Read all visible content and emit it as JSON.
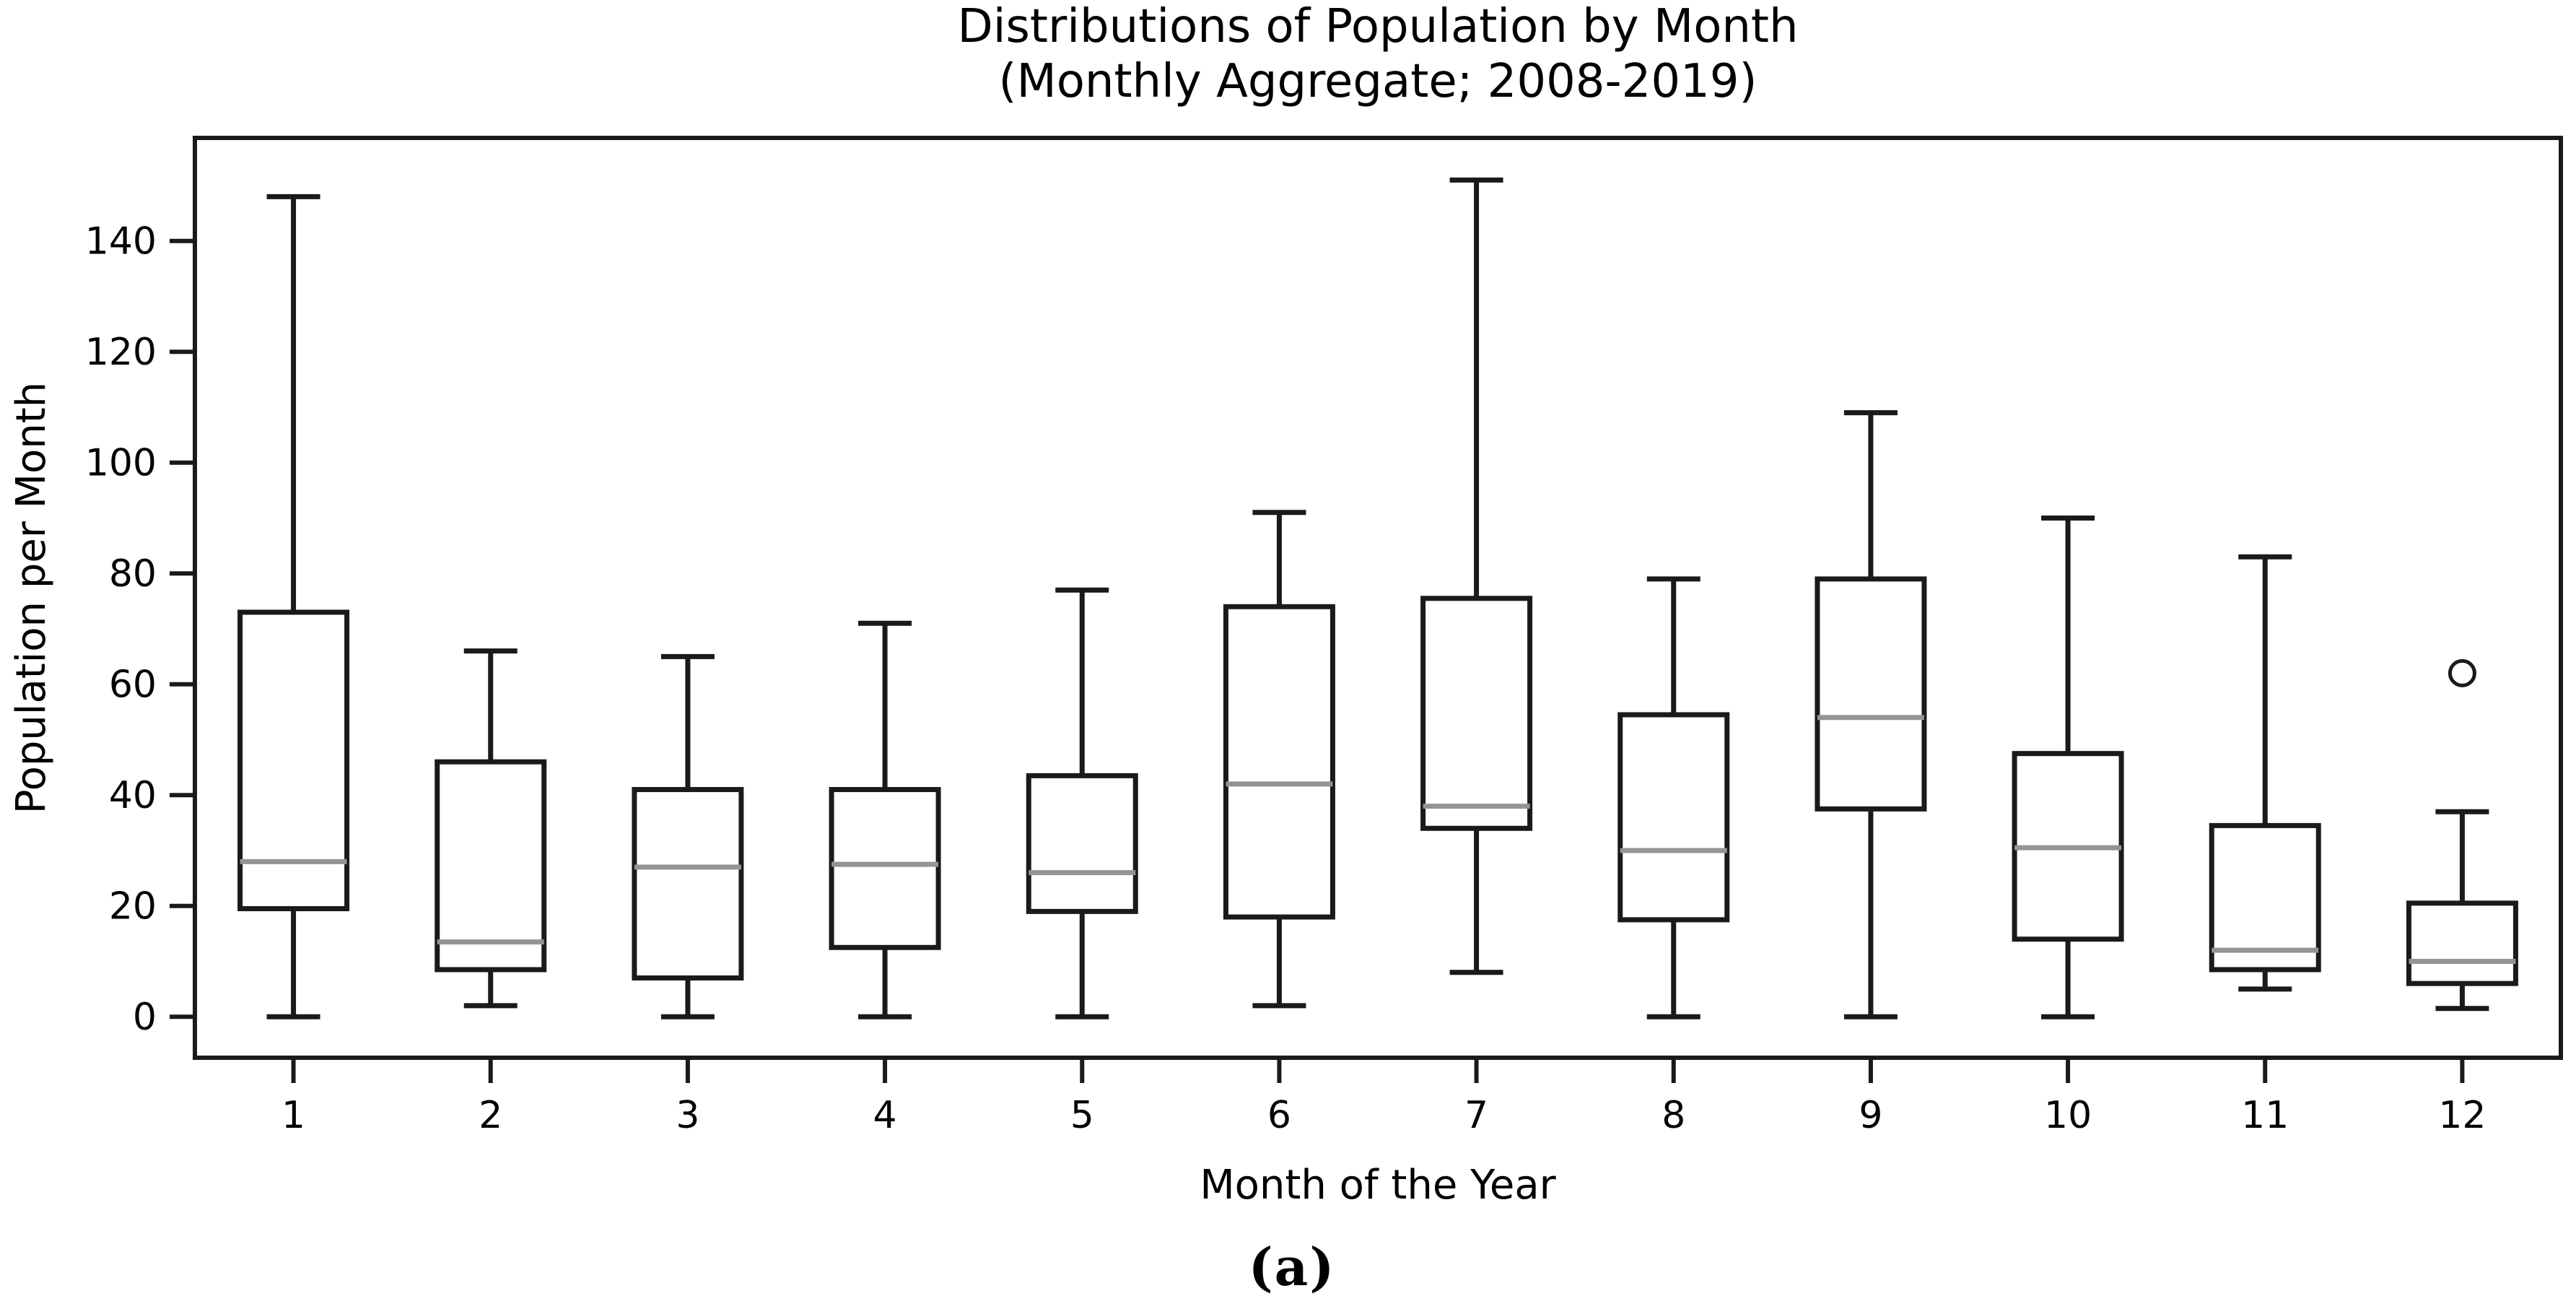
{
  "figure": {
    "caption": "(a)"
  },
  "chart_data": {
    "type": "box",
    "title": "Distributions of Population by Month",
    "subtitle": "(Monthly Aggregate; 2008-2019)",
    "xlabel": "Month of the Year",
    "ylabel": "Population per Month",
    "categories": [
      "1",
      "2",
      "3",
      "4",
      "5",
      "6",
      "7",
      "8",
      "9",
      "10",
      "11",
      "12"
    ],
    "yticks": [
      0,
      20,
      40,
      60,
      80,
      100,
      120,
      140
    ],
    "ylim": [
      -7.4,
      158.6
    ],
    "grid": false,
    "legend": null,
    "boxes": [
      {
        "month": "1",
        "whislo": 0,
        "q1": 19.5,
        "med": 28,
        "q3": 73,
        "whishi": 148,
        "outliers": []
      },
      {
        "month": "2",
        "whislo": 2,
        "q1": 8.5,
        "med": 13.5,
        "q3": 46,
        "whishi": 66,
        "outliers": []
      },
      {
        "month": "3",
        "whislo": 0,
        "q1": 7,
        "med": 27,
        "q3": 41,
        "whishi": 65,
        "outliers": []
      },
      {
        "month": "4",
        "whislo": 0,
        "q1": 12.5,
        "med": 27.5,
        "q3": 41,
        "whishi": 71,
        "outliers": []
      },
      {
        "month": "5",
        "whislo": 0,
        "q1": 19,
        "med": 26,
        "q3": 43.5,
        "whishi": 77,
        "outliers": []
      },
      {
        "month": "6",
        "whislo": 2,
        "q1": 18,
        "med": 42,
        "q3": 74,
        "whishi": 91,
        "outliers": []
      },
      {
        "month": "7",
        "whislo": 8,
        "q1": 34,
        "med": 38,
        "q3": 75.5,
        "whishi": 151,
        "outliers": []
      },
      {
        "month": "8",
        "whislo": 0,
        "q1": 17.5,
        "med": 30,
        "q3": 54.5,
        "whishi": 79,
        "outliers": []
      },
      {
        "month": "9",
        "whislo": 0,
        "q1": 37.5,
        "med": 54,
        "q3": 79,
        "whishi": 109,
        "outliers": []
      },
      {
        "month": "10",
        "whislo": 0,
        "q1": 14,
        "med": 30.5,
        "q3": 47.5,
        "whishi": 90,
        "outliers": []
      },
      {
        "month": "11",
        "whislo": 5,
        "q1": 8.5,
        "med": 12,
        "q3": 34.5,
        "whishi": 83,
        "outliers": []
      },
      {
        "month": "12",
        "whislo": 1.5,
        "q1": 6,
        "med": 10,
        "q3": 20.5,
        "whishi": 37,
        "outliers": [
          62
        ]
      }
    ],
    "colors": {
      "line": "#1a1a1a",
      "median": "#949494",
      "background": "#ffffff"
    }
  }
}
